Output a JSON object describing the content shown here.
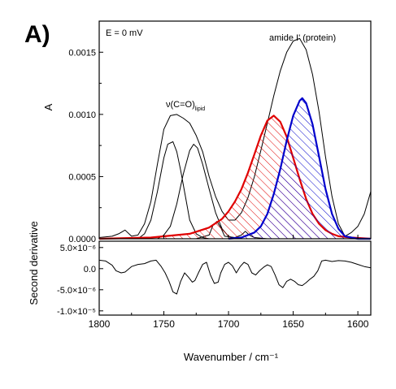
{
  "panel_label": "A)",
  "chart_data": [
    {
      "type": "line",
      "ylabel": "A",
      "annotation": "E = 0 mV",
      "label_amide": "amide I' (protein)",
      "label_nu_main": "ν(C=O)",
      "label_nu_sub": "lipid",
      "xlim": [
        1800,
        1590
      ],
      "ylim": [
        0,
        0.00175
      ],
      "yticks": [
        0.0,
        0.0005,
        0.001,
        0.0015
      ],
      "ytick_labels": [
        "0.0000",
        "0.0005",
        "0.0010",
        "0.0015"
      ],
      "series": [
        {
          "color": "#000000",
          "x": [
            1800,
            1790,
            1785,
            1780,
            1775,
            1770,
            1765,
            1760,
            1755,
            1750,
            1745,
            1740,
            1735,
            1730,
            1725,
            1720,
            1715,
            1710,
            1705,
            1700,
            1695,
            1690,
            1685,
            1680,
            1675,
            1670,
            1665,
            1660,
            1655,
            1650,
            1645,
            1640,
            1635,
            1630,
            1625,
            1620,
            1615,
            1610,
            1605,
            1600,
            1595,
            1590
          ],
          "y": [
            1e-05,
            2e-05,
            4e-05,
            7e-05,
            2e-05,
            3e-05,
            0.00012,
            0.0003,
            0.0006,
            0.00088,
            0.00099,
            0.001,
            0.00097,
            0.00093,
            0.00083,
            0.0007,
            0.0005,
            0.00034,
            0.00022,
            0.00015,
            0.00015,
            0.00021,
            0.00033,
            0.0005,
            0.00071,
            0.00093,
            0.00115,
            0.00135,
            0.0015,
            0.00159,
            0.00161,
            0.00152,
            0.00132,
            0.00102,
            0.00066,
            0.00034,
            0.00012,
            2e-05,
            5e-05,
            0.0001,
            0.0002,
            0.00038
          ]
        },
        {
          "color": "#000000",
          "x": [
            1770,
            1765,
            1760,
            1755,
            1750,
            1747,
            1743,
            1740,
            1737,
            1733,
            1730,
            1725,
            1720,
            1715
          ],
          "y": [
            0.0,
            4e-05,
            0.00015,
            0.00038,
            0.00065,
            0.00076,
            0.00078,
            0.0007,
            0.00055,
            0.00032,
            0.00015,
            4e-05,
            1e-05,
            0.0
          ],
          "area": false
        },
        {
          "color": "#000000",
          "x": [
            1755,
            1750,
            1745,
            1740,
            1735,
            1730,
            1727,
            1724,
            1720,
            1715,
            1710,
            1705,
            1700,
            1695
          ],
          "y": [
            0.0,
            3e-05,
            0.0001,
            0.00028,
            0.00052,
            0.00071,
            0.00076,
            0.00073,
            0.0006,
            0.0004,
            0.00021,
            8e-05,
            2e-05,
            0.0
          ]
        },
        {
          "color": "#000000",
          "x": [
            1725,
            1715,
            1712,
            1709,
            1706,
            1703,
            1695,
            1690,
            1687,
            1684,
            1680,
            1670
          ],
          "y": [
            0.0,
            3e-05,
            0.00011,
            0.00014,
            9e-05,
            2e-05,
            1e-05,
            3e-05,
            6e-05,
            3e-05,
            1e-05,
            0.0
          ]
        },
        {
          "color": "#e00000",
          "x": [
            1800,
            1760,
            1730,
            1715,
            1705,
            1700,
            1695,
            1690,
            1685,
            1680,
            1675,
            1670,
            1665,
            1660,
            1655,
            1650,
            1645,
            1640,
            1635,
            1630,
            1625,
            1620,
            1615,
            1605,
            1590
          ],
          "y": [
            0.0,
            1e-05,
            4e-05,
            9e-05,
            0.00016,
            0.00022,
            0.0003,
            0.0004,
            0.00053,
            0.00068,
            0.00083,
            0.00095,
            0.00099,
            0.00094,
            0.00082,
            0.00065,
            0.00048,
            0.00032,
            0.0002,
            0.00012,
            7e-05,
            4e-05,
            2e-05,
            1e-05,
            0.0
          ],
          "hatch": true
        },
        {
          "color": "#0000cc",
          "x": [
            1700,
            1690,
            1680,
            1675,
            1670,
            1665,
            1660,
            1655,
            1650,
            1645,
            1643,
            1640,
            1635,
            1630,
            1625,
            1620,
            1615,
            1610,
            1600,
            1590
          ],
          "y": [
            0.0,
            1e-05,
            5e-05,
            0.0001,
            0.0002,
            0.00036,
            0.00056,
            0.00079,
            0.00099,
            0.00111,
            0.00113,
            0.00109,
            0.00092,
            0.00066,
            0.0004,
            0.0002,
            8e-05,
            2e-05,
            0.0,
            0.0
          ],
          "hatch": true
        }
      ]
    },
    {
      "type": "line",
      "ylabel": "Second derivative",
      "xlabel": "Wavenumber / cm⁻¹",
      "xlim": [
        1800,
        1590
      ],
      "ylim": [
        -1.1e-05,
        6.5e-06
      ],
      "xticks": [
        1800,
        1750,
        1700,
        1650,
        1600
      ],
      "xtick_labels": [
        "1800",
        "1750",
        "1700",
        "1650",
        "1600"
      ],
      "yticks": [
        5e-06,
        0.0,
        -5e-06,
        -1e-05
      ],
      "ytick_labels": [
        "5.0×10⁻⁶",
        "0.0",
        "-5.0×10⁻⁶",
        "-1.0×10⁻⁵"
      ],
      "series": [
        {
          "color": "#000000",
          "x": [
            1800,
            1795,
            1790,
            1787,
            1783,
            1780,
            1775,
            1770,
            1765,
            1760,
            1756,
            1752,
            1749,
            1746,
            1743,
            1740,
            1737,
            1734,
            1731,
            1728,
            1726,
            1723,
            1720,
            1717,
            1714,
            1711,
            1708,
            1706,
            1703,
            1700,
            1697,
            1694,
            1691,
            1688,
            1685,
            1682,
            1679,
            1676,
            1673,
            1670,
            1667,
            1664,
            1661,
            1658,
            1655,
            1652,
            1649,
            1646,
            1643,
            1640,
            1637,
            1634,
            1631,
            1628,
            1625,
            1620,
            1615,
            1610,
            1605,
            1600,
            1595,
            1590
          ],
          "y": [
            2e-06,
            1.8e-06,
            8e-07,
            -5e-07,
            -1e-06,
            -8e-07,
            5e-07,
            1e-06,
            1.2e-06,
            1.8e-06,
            2e-06,
            5e-07,
            -1e-06,
            -3e-06,
            -5.5e-06,
            -6e-06,
            -3e-06,
            -1e-06,
            -2e-06,
            -3.2e-06,
            -2.8e-06,
            -8e-07,
            1e-06,
            1.5e-06,
            -1.5e-06,
            -3.5e-06,
            -3.2e-06,
            -1e-06,
            1e-06,
            1.5e-06,
            7e-07,
            -1e-06,
            5e-07,
            1.5e-06,
            1e-06,
            -1e-06,
            -1.5e-06,
            -5e-07,
            3e-07,
            9e-07,
            5e-07,
            -1.5e-06,
            -3.8e-06,
            -4.5e-06,
            -3e-06,
            -2.5e-06,
            -3e-06,
            -3.8e-06,
            -4e-06,
            -3.3e-06,
            -2.5e-06,
            -1.8e-06,
            -5e-07,
            1.8e-06,
            2e-06,
            1.7e-06,
            1.9e-06,
            1.8e-06,
            1.5e-06,
            1e-06,
            5e-07,
            2e-07
          ]
        }
      ]
    }
  ]
}
